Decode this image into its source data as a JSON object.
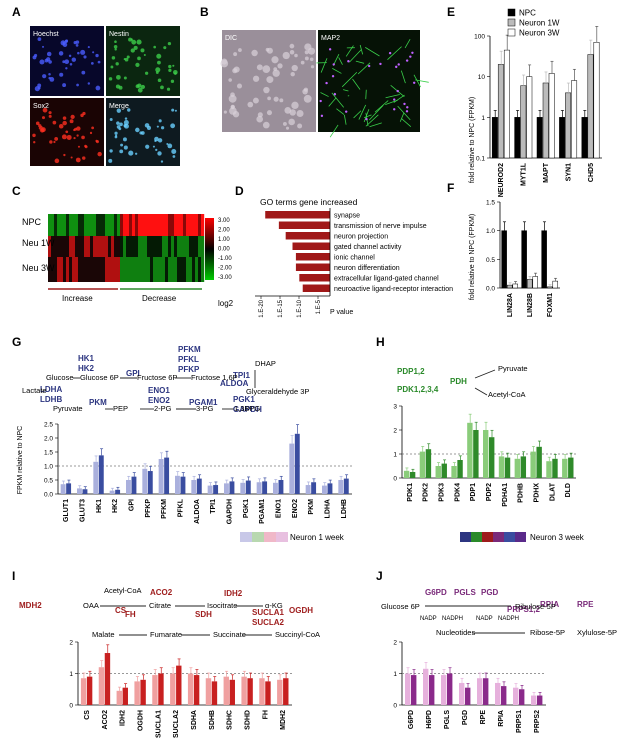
{
  "panels": {
    "A": {
      "label": "A",
      "tiles": [
        "Hoechst",
        "Nestin",
        "Sox2",
        "Merge"
      ]
    },
    "B": {
      "label": "B",
      "tiles": [
        "DIC",
        "MAP2"
      ]
    },
    "C": {
      "label": "C",
      "rows": [
        "NPC",
        "Neu 1W",
        "Neu 3W"
      ],
      "scale": [
        "3.00",
        "2.00",
        "1.00",
        "0.00",
        "-1.00",
        "-2.00",
        "-3.00"
      ],
      "scale_title": "log2",
      "groups": [
        "Increase",
        "Decrease"
      ]
    },
    "D": {
      "label": "D",
      "title": "GO terms gene increased",
      "ticks": [
        "1.E-20",
        "1.E-15",
        "1.E-10",
        "1.E-5"
      ],
      "xlabel": "P value"
    },
    "E": {
      "label": "E",
      "ylabel": "fold relative to NPC (FPKM)"
    },
    "F": {
      "label": "F",
      "ylabel": "fold relative to NPC (FPKM)"
    },
    "G": {
      "label": "G",
      "ylabel": "FPKM relative to NPC"
    },
    "H": {
      "label": "H"
    },
    "I": {
      "label": "I"
    },
    "J": {
      "label": "J"
    },
    "legend_main": {
      "neuron1": "Neuron 1 week",
      "neuron3": "Neuron 3 week"
    }
  },
  "colors": {
    "navy": "#2c3580",
    "green": "#2a8a2a",
    "red": "#9e1c1c",
    "purple": "#7a2a7a",
    "bar_dark": "#000000",
    "bar_grey": "#bbbbbb",
    "bar_white": "#ffffff"
  },
  "chart_data": [
    {
      "panel": "D",
      "type": "bar",
      "orientation": "horizontal",
      "title": "GO terms gene increased",
      "xlabel": "P value",
      "x_scale": "log",
      "categories": [
        "synapse",
        "transmission of nerve impulse",
        "neuron projection",
        "gated channel activity",
        "ionic channel",
        "neuron differentiation",
        "extracellular ligand-gated channel",
        "neuroactive ligand-receptor interaction"
      ],
      "values": [
        1e-19,
        1e-15,
        1e-13,
        1e-11,
        1e-10,
        1e-10,
        1e-09,
        1e-08
      ],
      "ticks": [
        "1.E-20",
        "1.E-15",
        "1.E-10",
        "1.E-5"
      ]
    },
    {
      "panel": "E",
      "type": "bar",
      "y_scale": "log",
      "ylim": [
        0.1,
        100
      ],
      "yticks": [
        "100",
        "10",
        "1",
        "0.1"
      ],
      "ylabel": "fold relative to NPC (FPKM)",
      "categories": [
        "NEUROD2",
        "MYT1L",
        "MAPT",
        "SYN1",
        "CHD5"
      ],
      "series": [
        {
          "name": "NPC",
          "values": [
            1,
            1,
            1,
            1,
            1
          ]
        },
        {
          "name": "Neuron 1W",
          "values": [
            20,
            6,
            7,
            4,
            35
          ]
        },
        {
          "name": "Neuron 3W",
          "values": [
            45,
            10,
            12,
            8,
            70
          ]
        }
      ]
    },
    {
      "panel": "F",
      "type": "bar",
      "ylim": [
        0,
        1.5
      ],
      "yticks": [
        "1.5",
        "1.0",
        "0.5",
        "0.0"
      ],
      "ylabel": "fold relative to NPC (FPKM)",
      "categories": [
        "LIN28A",
        "LIN28B",
        "FOXM1"
      ],
      "series": [
        {
          "name": "NPC",
          "values": [
            1,
            1,
            1
          ]
        },
        {
          "name": "Neuron 1W",
          "values": [
            0.05,
            0.15,
            0.02
          ]
        },
        {
          "name": "Neuron 3W",
          "values": [
            0.07,
            0.2,
            0.12
          ]
        }
      ]
    },
    {
      "panel": "G",
      "type": "bar",
      "ylim": [
        0,
        2.5
      ],
      "yticks": [
        "2.5",
        "2.0",
        "1.5",
        "1.0",
        "0.5",
        "0.0"
      ],
      "ylabel": "FPKM relative to NPC",
      "categories": [
        "GLUT1",
        "GLUT3",
        "HK1",
        "HK2",
        "GPI",
        "PFKP",
        "PFKM",
        "PFKL",
        "ALDOA",
        "TPI1",
        "GAPDH",
        "PGK1",
        "PGAM1",
        "ENO1",
        "ENO2",
        "PKM",
        "LDHA",
        "LDHB"
      ],
      "series": [
        {
          "name": "Neuron 1 week",
          "values": [
            0.35,
            0.2,
            1.15,
            0.12,
            0.5,
            0.9,
            1.25,
            0.65,
            0.5,
            0.3,
            0.38,
            0.4,
            0.42,
            0.4,
            1.8,
            0.32,
            0.3,
            0.5
          ]
        },
        {
          "name": "Neuron 3 week",
          "values": [
            0.38,
            0.17,
            1.38,
            0.15,
            0.62,
            0.82,
            1.3,
            0.62,
            0.55,
            0.32,
            0.45,
            0.48,
            0.45,
            0.5,
            2.15,
            0.42,
            0.38,
            0.55
          ]
        }
      ]
    },
    {
      "panel": "H",
      "type": "bar",
      "ylim": [
        0,
        3
      ],
      "yticks": [
        "3",
        "2",
        "1",
        "0"
      ],
      "categories": [
        "PDK1",
        "PDK2",
        "PDK3",
        "PDK4",
        "PDP1",
        "PDP2",
        "PDHA1",
        "PDHB",
        "PDHX",
        "DLAT",
        "DLD"
      ],
      "series": [
        {
          "name": "Neuron 1 week",
          "values": [
            0.3,
            1.1,
            0.5,
            0.5,
            2.3,
            2.0,
            0.9,
            0.8,
            1.1,
            0.7,
            0.8
          ]
        },
        {
          "name": "Neuron 3 week",
          "values": [
            0.25,
            1.2,
            0.6,
            0.75,
            2.0,
            1.7,
            0.85,
            0.9,
            1.3,
            0.8,
            0.85
          ]
        }
      ]
    },
    {
      "panel": "I",
      "type": "bar",
      "ylim": [
        0,
        2
      ],
      "yticks": [
        "2",
        "1",
        "0"
      ],
      "categories": [
        "CS",
        "ACO2",
        "IDH2",
        "OGDH",
        "SUCLA1",
        "SUCLA2",
        "SDHA",
        "SDHB",
        "SDHC",
        "SDHD",
        "FH",
        "MDH2"
      ],
      "series": [
        {
          "name": "Neuron 1 week",
          "values": [
            0.85,
            1.2,
            0.45,
            0.75,
            0.95,
            1.0,
            1.0,
            0.85,
            0.9,
            0.9,
            0.85,
            0.8
          ]
        },
        {
          "name": "Neuron 3 week",
          "values": [
            0.9,
            1.65,
            0.55,
            0.8,
            1.0,
            1.25,
            0.95,
            0.75,
            0.8,
            0.85,
            0.75,
            0.85
          ]
        }
      ]
    },
    {
      "panel": "J",
      "type": "bar",
      "ylim": [
        0,
        2
      ],
      "yticks": [
        "2",
        "1",
        "0"
      ],
      "categories": [
        "G6PD",
        "H6PD",
        "PGLS",
        "PGD",
        "RPE",
        "RPIA",
        "PRPS1",
        "PRPS2"
      ],
      "series": [
        {
          "name": "Neuron 1 week",
          "values": [
            1.0,
            1.15,
            0.95,
            0.7,
            0.85,
            0.7,
            0.55,
            0.3
          ]
        },
        {
          "name": "Neuron 3 week",
          "values": [
            0.95,
            0.95,
            1.0,
            0.55,
            0.85,
            0.6,
            0.5,
            0.3
          ]
        }
      ]
    }
  ],
  "pathways": {
    "G": {
      "enzymes": [
        {
          "t": "HK1"
        },
        {
          "t": "HK2"
        },
        {
          "t": "GPI"
        },
        {
          "t": "PFKM"
        },
        {
          "t": "PFKL"
        },
        {
          "t": "PFKP"
        },
        {
          "t": "TPI1"
        },
        {
          "t": "ALDOA"
        },
        {
          "t": "LDHA"
        },
        {
          "t": "LDHB"
        },
        {
          "t": "PKM"
        },
        {
          "t": "ENO1"
        },
        {
          "t": "ENO2"
        },
        {
          "t": "PGAM1"
        },
        {
          "t": "PGK1"
        },
        {
          "t": "GAPDH"
        }
      ],
      "metabolites": [
        {
          "t": "Glucose"
        },
        {
          "t": "Glucose 6P"
        },
        {
          "t": "Fructose 6P"
        },
        {
          "t": "Fructose 1,6P"
        },
        {
          "t": "DHAP"
        },
        {
          "t": "Glyceraldehyde 3P"
        },
        {
          "t": "Lactate"
        },
        {
          "t": "Pyruvate"
        },
        {
          "t": "PEP"
        },
        {
          "t": "2-PG"
        },
        {
          "t": "3-PG"
        },
        {
          "t": "1,3BPG"
        }
      ]
    },
    "H": {
      "enzymes": [
        {
          "t": "PDP1,2"
        },
        {
          "t": "PDK1,2,3,4"
        },
        {
          "t": "PDH"
        }
      ],
      "metabolites": [
        {
          "t": "Pyruvate"
        },
        {
          "t": "Acetyl-CoA"
        }
      ]
    },
    "I": {
      "enzymes": [
        {
          "t": "CS"
        },
        {
          "t": "ACO2"
        },
        {
          "t": "IDH2"
        },
        {
          "t": "MDH2"
        },
        {
          "t": "OGDH"
        },
        {
          "t": "FH"
        },
        {
          "t": "SDH"
        },
        {
          "t": "SUCLA1"
        },
        {
          "t": "SUCLA2"
        }
      ],
      "metabolites": [
        {
          "t": "Acetyl-CoA"
        },
        {
          "t": "OAA"
        },
        {
          "t": "Citrate"
        },
        {
          "t": "Isocitrate"
        },
        {
          "t": "α-KG"
        },
        {
          "t": "Malate"
        },
        {
          "t": "Fumarate"
        },
        {
          "t": "Succinate"
        },
        {
          "t": "Succinyl-CoA"
        }
      ]
    },
    "J": {
      "enzymes": [
        {
          "t": "G6PD"
        },
        {
          "t": "PGLS"
        },
        {
          "t": "PGD"
        },
        {
          "t": "RPIA"
        },
        {
          "t": "RPE"
        },
        {
          "t": "PRPS1,2"
        }
      ],
      "metabolites": [
        {
          "t": "Glucose 6P"
        },
        {
          "t": "Ribulose-5P"
        },
        {
          "t": "Ribose-5P"
        },
        {
          "t": "Xylulose-5P"
        },
        {
          "t": "Nucleotides"
        }
      ],
      "cofactors": [
        {
          "t": "NADP"
        },
        {
          "t": "NADPH"
        },
        {
          "t": "NADP"
        },
        {
          "t": "NADPH"
        }
      ]
    }
  }
}
